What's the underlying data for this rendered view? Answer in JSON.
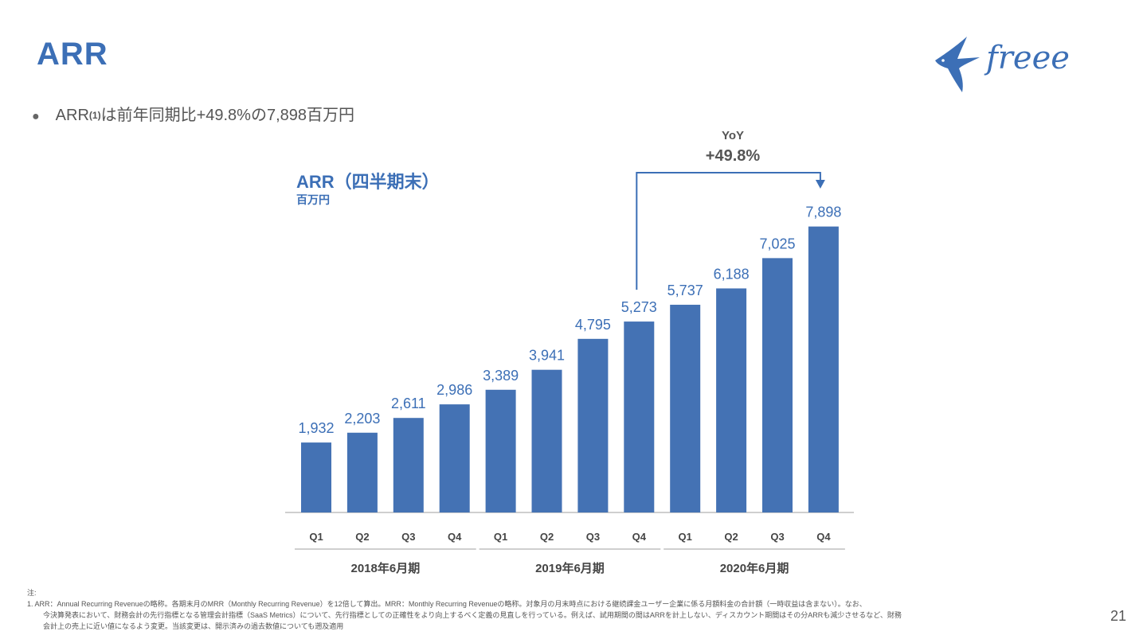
{
  "header": {
    "title": "ARR",
    "bullet_prefix": "ARR",
    "bullet_sup": "(1)",
    "bullet_suffix": "は前年同期比+49.8%の7,898百万円"
  },
  "logo": {
    "text": "freee",
    "color": "#3c6fb6"
  },
  "chart_header": {
    "title": "ARR（四半期末）",
    "unit": "百万円"
  },
  "yoy": {
    "label": "YoY",
    "value": "+49.8%"
  },
  "chart_data": {
    "type": "bar",
    "title": "ARR（四半期末）",
    "ylabel": "百万円",
    "ylim": [
      0,
      8000
    ],
    "bar_color": "#4472b4",
    "label_color": "#3c6fb6",
    "categories": [
      "Q1",
      "Q2",
      "Q3",
      "Q4",
      "Q1",
      "Q2",
      "Q3",
      "Q4",
      "Q1",
      "Q2",
      "Q3",
      "Q4"
    ],
    "values": [
      1932,
      2203,
      2611,
      2986,
      3389,
      3941,
      4795,
      5273,
      5737,
      6188,
      7025,
      7898
    ],
    "value_labels": [
      "1,932",
      "2,203",
      "2,611",
      "2,986",
      "3,389",
      "3,941",
      "4,795",
      "5,273",
      "5,737",
      "6,188",
      "7,025",
      "7,898"
    ],
    "groups": [
      {
        "label": "2018年6月期",
        "start": 0,
        "end": 3
      },
      {
        "label": "2019年6月期",
        "start": 4,
        "end": 7
      },
      {
        "label": "2020年6月期",
        "start": 8,
        "end": 11
      }
    ],
    "yoy_arrow": {
      "from_index": 7,
      "to_index": 11
    }
  },
  "footnote": {
    "heading": "注:",
    "line1": "1.  ARR：Annual Recurring Revenueの略称。各期末月のMRR（Monthly Recurring Revenue）を12倍して算出。MRR：Monthly Recurring Revenueの略称。対象月の月末時点における継続課金ユーザー企業に係る月額料金の合計額（一時収益は含まない）。なお、",
    "line2": "今決算発表において、財務会計の先行指標となる管理会計指標（SaaS Metrics）について、先行指標としての正確性をより向上するべく定義の見直しを行っている。例えば、試用期間の間はARRを計上しない、ディスカウント期間はその分ARRも減少させるなど、財務",
    "line3": "会計上の売上に近い値になるよう変更。当該変更は、開示済みの過去数値についても遡及適用"
  },
  "page_number": "21"
}
